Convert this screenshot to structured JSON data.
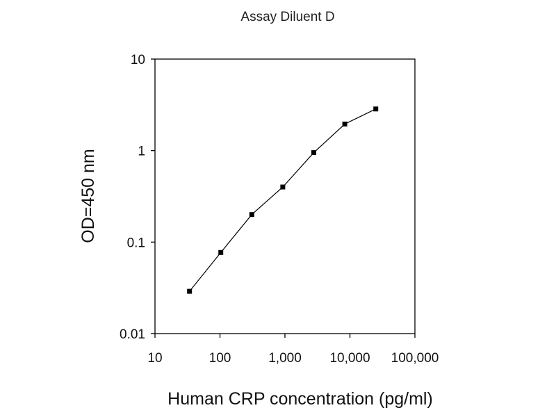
{
  "chart_data": {
    "type": "line",
    "title": "Assay Diluent D",
    "xlabel": "Human CRP concentration (pg/ml)",
    "ylabel": "OD=450 nm",
    "x_scale": "log",
    "y_scale": "log",
    "xlim": [
      10,
      100000
    ],
    "ylim": [
      0.01,
      10
    ],
    "x_ticks": [
      {
        "value": 10,
        "label": "10"
      },
      {
        "value": 100,
        "label": "100"
      },
      {
        "value": 1000,
        "label": "1,000"
      },
      {
        "value": 10000,
        "label": "10,000"
      },
      {
        "value": 100000,
        "label": "100,000"
      }
    ],
    "y_ticks": [
      {
        "value": 0.01,
        "label": "0.01"
      },
      {
        "value": 0.1,
        "label": "0.1"
      },
      {
        "value": 1,
        "label": "1"
      },
      {
        "value": 10,
        "label": "10"
      }
    ],
    "grid": false,
    "legend": "none",
    "series": [
      {
        "x": [
          34,
          103,
          309,
          926,
          2778,
          8333,
          25000
        ],
        "y": [
          0.029,
          0.077,
          0.2,
          0.4,
          0.95,
          1.95,
          2.85
        ]
      }
    ],
    "colors": {
      "line": "#000000",
      "marker": "#000000",
      "axis": "#000000"
    }
  }
}
